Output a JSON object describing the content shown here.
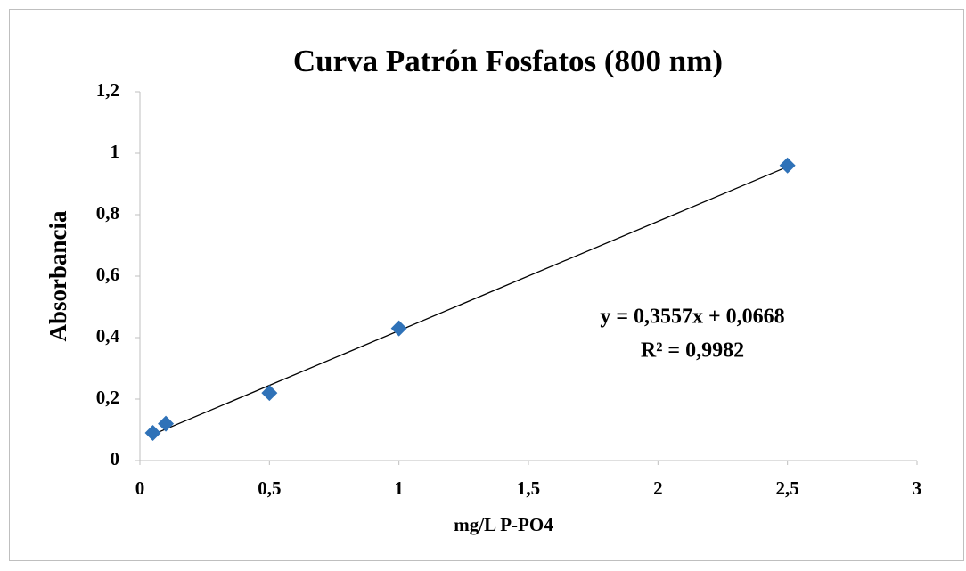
{
  "chart_data": {
    "type": "scatter",
    "title": "Curva Patrón Fosfatos (800 nm)",
    "x_label": "mg/L P-PO4",
    "y_label": "Absorbancia",
    "series": [
      {
        "name": "Absorbancia",
        "color": "#2f72b8",
        "x": [
          0.05,
          0.1,
          0.5,
          1,
          2.5
        ],
        "values": [
          0.09,
          0.12,
          0.22,
          0.43,
          0.96
        ]
      }
    ],
    "trendline": {
      "equation": "y = 0,3557x + 0,0668",
      "r2": "R² = 0,9982",
      "slope": 0.3557,
      "intercept": 0.0668,
      "color": "#000000"
    },
    "xlim": [
      0,
      3
    ],
    "xticks": [
      0,
      {
        "value": 0.5,
        "label": "0,5"
      },
      1,
      {
        "value": 1.5,
        "label": "1,5"
      },
      2,
      {
        "value": 2.5,
        "label": "2,5"
      },
      3
    ],
    "ylim": [
      0,
      1.2
    ],
    "yticks": [
      0,
      {
        "value": 0.2,
        "label": "0,2"
      },
      {
        "value": 0.4,
        "label": "0,4"
      },
      {
        "value": 0.6,
        "label": "0,6"
      },
      {
        "value": 0.8,
        "label": "0,8"
      },
      1,
      {
        "value": 1.2,
        "label": "1,2"
      }
    ],
    "grid": false
  }
}
